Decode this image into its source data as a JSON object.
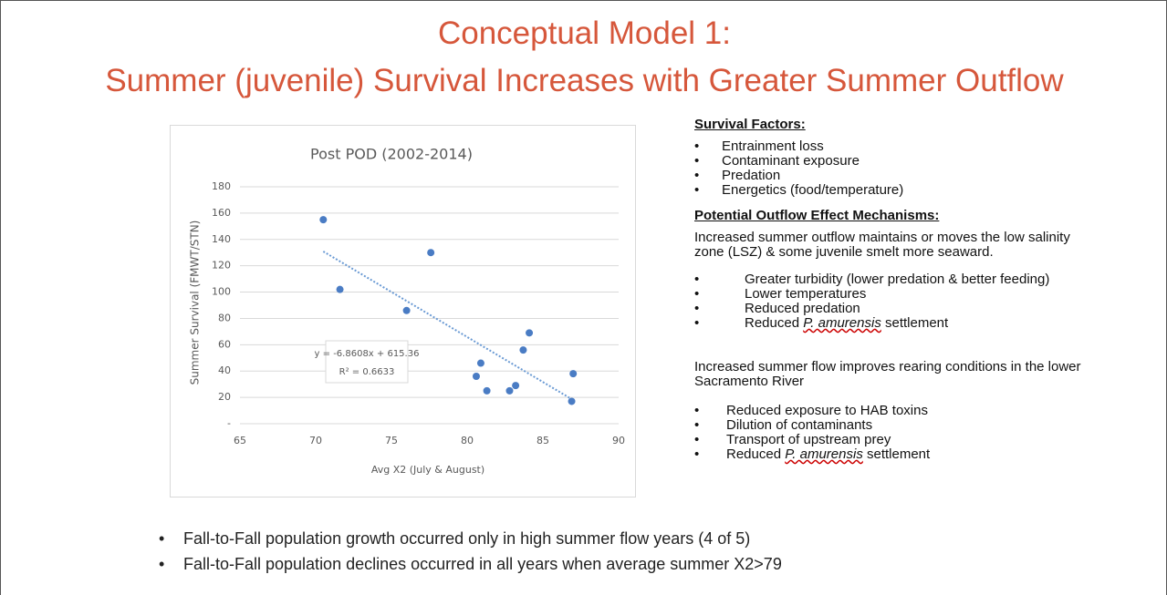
{
  "title_lines": [
    "Conceptual Model 1:",
    "Summer (juvenile) Survival Increases with Greater Summer Outflow"
  ],
  "chart_data": {
    "type": "scatter",
    "title": "Post POD (2002-2014)",
    "x_label": "Avg X2 (July & August)",
    "y_label": "Summer Survival (FMWT/STN)",
    "series": [
      {
        "color": "#4a7cc4",
        "x": [
          70.5,
          71.6,
          76,
          77.6,
          80.6,
          80.9,
          81.3,
          82.8,
          83.2,
          83.7,
          84.1,
          86.9,
          87
        ],
        "values": [
          155,
          102,
          86,
          130,
          36,
          46,
          25,
          25,
          29,
          56,
          69,
          17,
          38
        ]
      }
    ],
    "xlim": [
      65,
      90
    ],
    "xticks": [
      65,
      70,
      75,
      80,
      85,
      90
    ],
    "ylim": [
      0,
      180
    ],
    "yticks": [
      {
        "value": 0,
        "label": "-"
      },
      20,
      40,
      60,
      80,
      100,
      120,
      140,
      160,
      180
    ],
    "grid": true,
    "trendline": true,
    "trendline_color": "#6a9ad4",
    "annotations": [
      "y = -6.8608x + 615.36",
      "R² = 0.6633"
    ]
  },
  "right_panel": {
    "heading1": "Survival Factors:",
    "factors": [
      "Entrainment loss",
      "Contaminant exposure",
      "Predation",
      "Energetics (food/temperature)"
    ],
    "heading2": "Potential Outflow Effect Mechanisms:",
    "paragraph1": "Increased summer outflow maintains or moves the low salinity zone (LSZ) & some juvenile smelt more seaward.",
    "mechanisms1": [
      "Greater turbidity (lower predation & better feeding)",
      "Lower temperatures",
      "Reduced predation",
      {
        "before": "Reduced ",
        "italic": "P. amurensis",
        "after": " settlement"
      }
    ],
    "paragraph2": "Increased summer flow improves rearing conditions in the lower Sacramento River",
    "mechanisms2": [
      "Reduced exposure to HAB toxins",
      "Dilution of contaminants",
      "Transport of upstream prey",
      {
        "before": "Reduced ",
        "italic": "P. amurensis",
        "after": " settlement"
      }
    ]
  },
  "bottom_bullets": [
    "Fall-to-Fall population growth occurred only in high summer flow  years (4 of 5)",
    "Fall-to-Fall  population declines occurred in all years when average summer X2>79"
  ]
}
